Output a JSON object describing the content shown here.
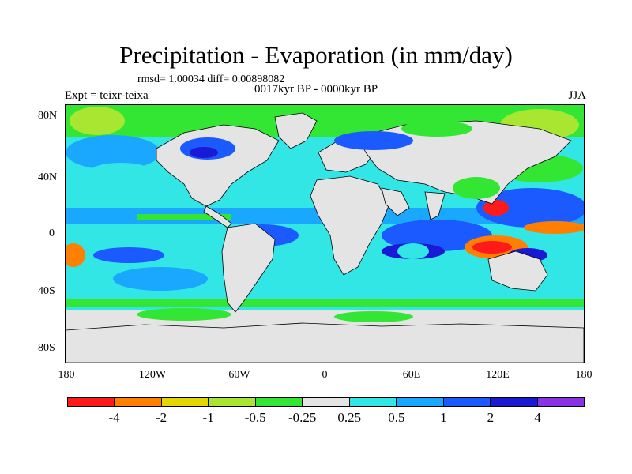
{
  "title": "Precipitation - Evaporation (in mm/day)",
  "stats": "rmsd= 1.00034 diff= 0.00898082",
  "subtitle": "0017kyr BP - 0000kyr BP",
  "left_label": "Expt = teixr-teixa",
  "right_label": "JJA",
  "y_ticks": [
    "80N",
    "40N",
    "0",
    "40S",
    "80S"
  ],
  "x_ticks": [
    "180",
    "120W",
    "60W",
    "0",
    "60E",
    "120E",
    "180"
  ],
  "colorbar": {
    "colors": [
      "#ff1a1a",
      "#ff8000",
      "#e6d600",
      "#a8e632",
      "#33e633",
      "#e4e4e4",
      "#33e6e6",
      "#1aa8ff",
      "#1a5aff",
      "#1a1ad6",
      "#8a33e6"
    ],
    "labels": [
      "-4",
      "-2",
      "-1",
      "-0.5",
      "-0.25",
      "0.25",
      "0.5",
      "1",
      "2",
      "4"
    ]
  },
  "map_colors": {
    "land": "#e4e4e4",
    "ocean_base": "#33e6e6"
  }
}
